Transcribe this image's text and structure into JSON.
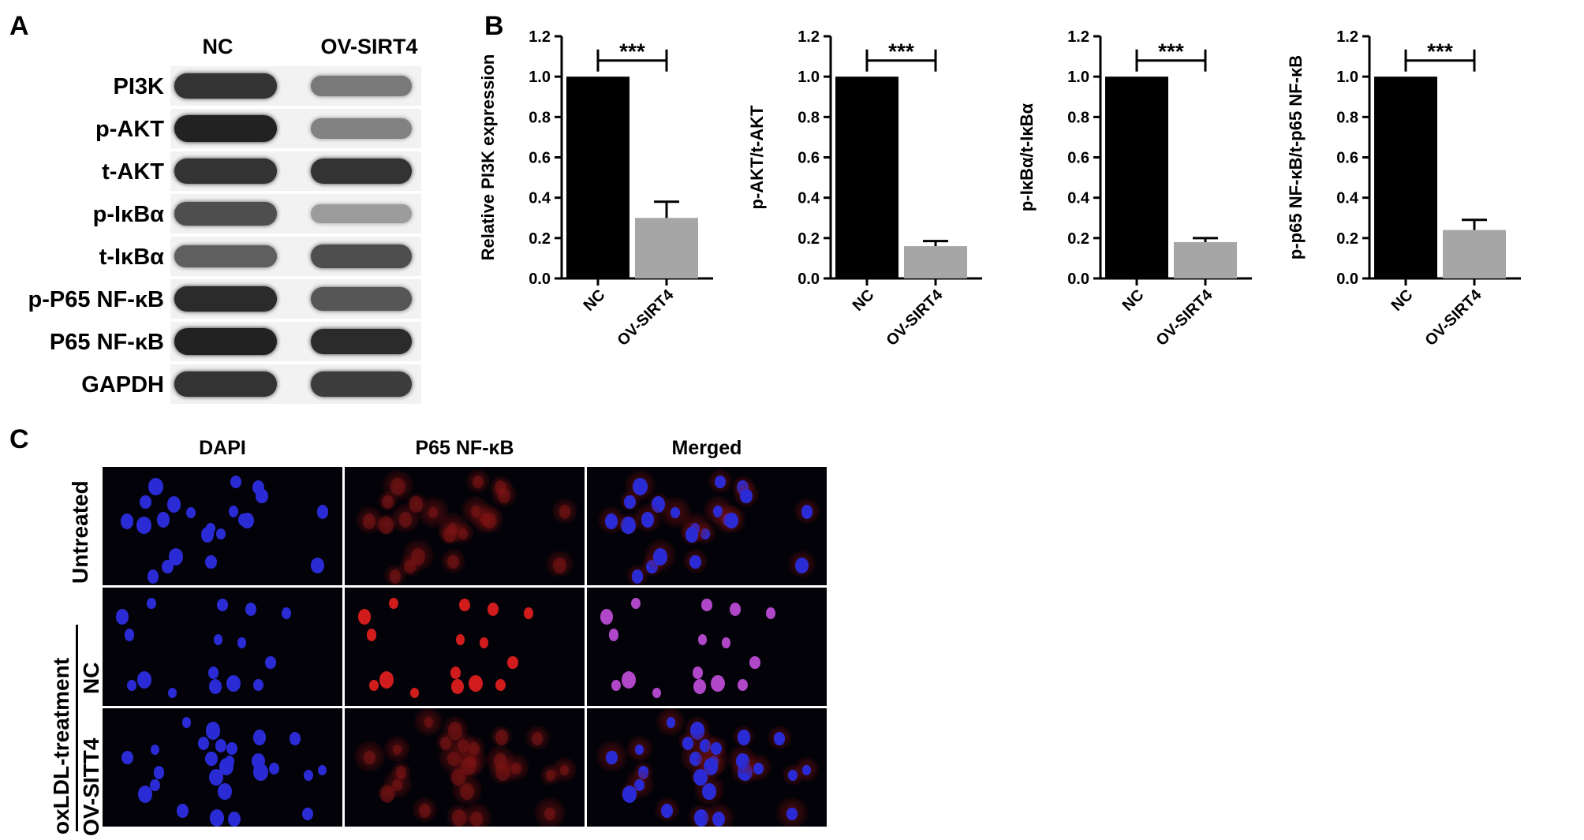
{
  "panels": {
    "a": "A",
    "b": "B",
    "c": "C"
  },
  "western_blot": {
    "columns": [
      "NC",
      "OV-SIRT4"
    ],
    "rows": [
      {
        "label": "PI3K",
        "nc": 0.85,
        "ov": 0.45
      },
      {
        "label": "p-AKT",
        "nc": 0.95,
        "ov": 0.4
      },
      {
        "label": "t-AKT",
        "nc": 0.85,
        "ov": 0.85
      },
      {
        "label": "p-IκBα",
        "nc": 0.7,
        "ov": 0.25
      },
      {
        "label": "t-IκBα",
        "nc": 0.6,
        "ov": 0.7
      },
      {
        "label": "p-P65 NF-κB",
        "nc": 0.9,
        "ov": 0.65
      },
      {
        "label": "P65 NF-κB",
        "nc": 0.95,
        "ov": 0.9
      },
      {
        "label": "GAPDH",
        "nc": 0.85,
        "ov": 0.8
      }
    ]
  },
  "chart_data": [
    {
      "type": "bar",
      "categories": [
        "NC",
        "OV-SIRT4"
      ],
      "values": [
        1.0,
        0.3
      ],
      "errors": [
        0,
        0.08
      ],
      "ylabel": "Relative PI3K expression",
      "ylim": [
        0,
        1.2
      ],
      "yticks": [
        "0.0",
        "0.2",
        "0.4",
        "0.6",
        "0.8",
        "1.0",
        "1.2"
      ],
      "significance": "***",
      "colors": [
        "#000000",
        "#a6a6a6"
      ]
    },
    {
      "type": "bar",
      "categories": [
        "NC",
        "OV-SIRT4"
      ],
      "values": [
        1.0,
        0.16
      ],
      "errors": [
        0,
        0.025
      ],
      "ylabel": "p-AKT/t-AKT",
      "ylim": [
        0,
        1.2
      ],
      "yticks": [
        "0.0",
        "0.2",
        "0.4",
        "0.6",
        "0.8",
        "1.0",
        "1.2"
      ],
      "significance": "***",
      "colors": [
        "#000000",
        "#a6a6a6"
      ]
    },
    {
      "type": "bar",
      "categories": [
        "NC",
        "OV-SIRT4"
      ],
      "values": [
        1.0,
        0.18
      ],
      "errors": [
        0,
        0.02
      ],
      "ylabel": "p-IκBα/t-IκBα",
      "ylim": [
        0,
        1.2
      ],
      "yticks": [
        "0.0",
        "0.2",
        "0.4",
        "0.6",
        "0.8",
        "1.0",
        "1.2"
      ],
      "significance": "***",
      "colors": [
        "#000000",
        "#a6a6a6"
      ]
    },
    {
      "type": "bar",
      "categories": [
        "NC",
        "OV-SIRT4"
      ],
      "values": [
        1.0,
        0.24
      ],
      "errors": [
        0,
        0.05
      ],
      "ylabel": "p-p65 NF-κB/t-p65 NF-κB",
      "ylim": [
        0,
        1.2
      ],
      "yticks": [
        "0.0",
        "0.2",
        "0.4",
        "0.6",
        "0.8",
        "1.0",
        "1.2"
      ],
      "significance": "***",
      "colors": [
        "#000000",
        "#a6a6a6"
      ]
    }
  ],
  "immunofluorescence": {
    "columns": [
      "DAPI",
      "P65 NF-κB",
      "Merged"
    ],
    "row_labels": [
      "Untreated",
      "NC",
      "OV-SITT4"
    ],
    "group_label": "oxLDL-treatment",
    "colors": {
      "nucleus": "#2b2bd6",
      "p65": "#d01c1c",
      "merged_nuclear": "#b046c8",
      "background": "#020208"
    }
  }
}
